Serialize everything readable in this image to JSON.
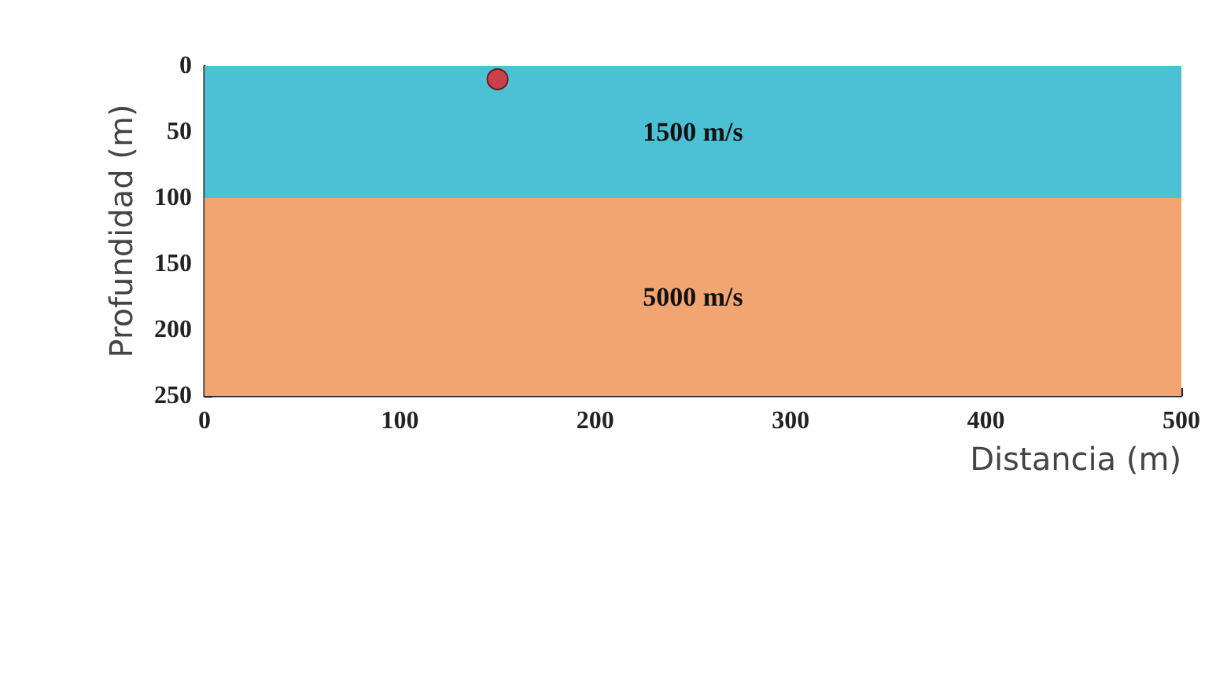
{
  "chart_data": {
    "type": "scatter",
    "xlabel": "Distancia (m)",
    "ylabel": "Profundidad (m)",
    "x": [
      150
    ],
    "values": [
      10
    ],
    "color": "#e8202a",
    "marker": "circle",
    "xlim": [
      0,
      500
    ],
    "xticks": [
      0,
      100,
      200,
      300,
      400,
      500
    ],
    "ylim": [
      250,
      0
    ],
    "yticks": [
      0,
      50,
      100,
      150,
      200,
      250
    ],
    "bands": [
      {
        "axis": "y",
        "from": 0,
        "to": 100,
        "label": "1500 m/s",
        "color": "#4cc0d4"
      },
      {
        "axis": "y",
        "from": 100,
        "to": 250,
        "label": "5000 m/s",
        "color": "#f2a571"
      }
    ],
    "grid": false
  }
}
